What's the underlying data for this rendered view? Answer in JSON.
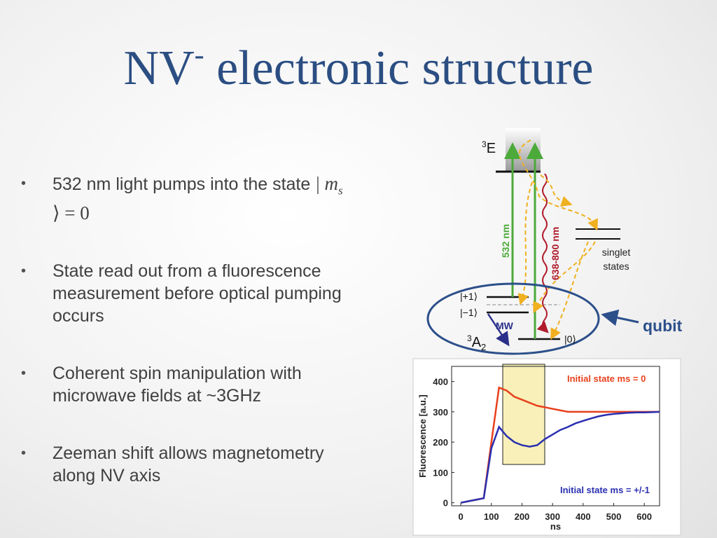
{
  "title": {
    "main": "NV",
    "superscript": "-",
    "rest": "electronic structure"
  },
  "bullets": [
    {
      "text": "532 nm light pumps into the state",
      "math": {
        "symbol": "m",
        "subscript": "s",
        "rest": "= 0"
      }
    },
    {
      "text": "State read out from a fluorescence measurement before optical pumping occurs"
    },
    {
      "text": "Coherent spin manipulation with microwave fields at ~3GHz"
    },
    {
      "text": "Zeeman shift allows magnetometry along NV axis"
    }
  ],
  "diagram": {
    "excited": {
      "superscript": "3",
      "main": "E"
    },
    "ground": {
      "superscript": "3",
      "main": "A",
      "subscript": "2"
    },
    "pump": "532 nm",
    "emission": "638-800 nm",
    "singlet": [
      "singlet",
      "states"
    ],
    "plus": "|+1⟩",
    "minus": "|−1⟩",
    "zero": "|0⟩",
    "mw": "MW",
    "qubit": "qubit"
  },
  "plot": {
    "xlabel": "ns",
    "ylabel": "Fluorescence [a.u.]",
    "xlim": [
      -30,
      650
    ],
    "ylim": [
      -10,
      450
    ],
    "xticks": [
      0,
      100,
      200,
      300,
      400,
      500,
      600
    ],
    "yticks": [
      0,
      100,
      200,
      300,
      400
    ],
    "x": [
      0,
      25,
      50,
      75,
      100,
      125,
      150,
      175,
      200,
      225,
      250,
      275,
      300,
      325,
      350,
      375,
      400,
      425,
      450,
      475,
      500,
      525,
      550,
      575,
      600,
      625,
      650
    ],
    "series": [
      {
        "name": "Initial state ms = 0",
        "color": "#e8401c",
        "values": [
          0,
          5,
          10,
          15,
          200,
          380,
          370,
          350,
          340,
          330,
          320,
          315,
          310,
          305,
          300,
          300,
          300,
          300,
          300,
          300,
          300,
          300,
          300,
          300,
          300,
          300,
          300
        ]
      },
      {
        "name": "Initial state ms = +/-1",
        "color": "#2a2fb0",
        "values": [
          0,
          5,
          10,
          15,
          180,
          250,
          220,
          200,
          190,
          185,
          190,
          210,
          225,
          240,
          250,
          262,
          270,
          278,
          285,
          290,
          293,
          295,
          297,
          298,
          298,
          299,
          300
        ]
      }
    ]
  }
}
